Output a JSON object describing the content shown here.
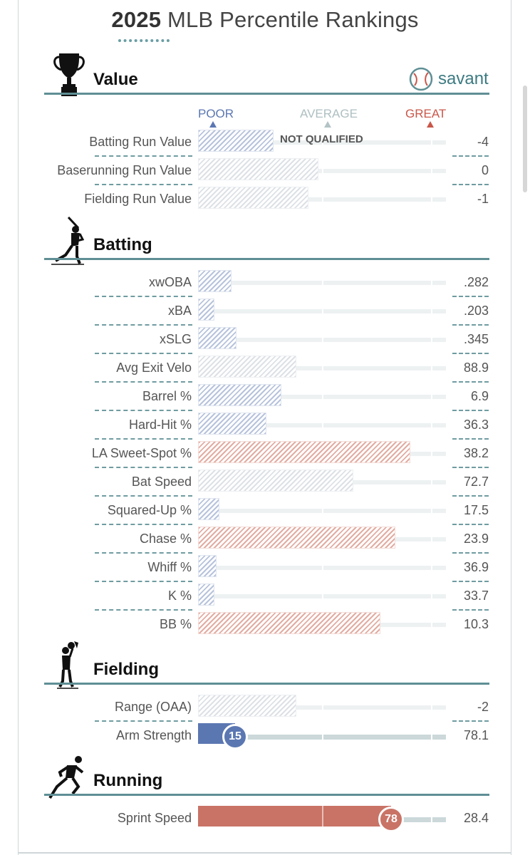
{
  "title": {
    "year": "2025",
    "rest": "MLB Percentile Rankings"
  },
  "brand": {
    "name": "savant",
    "icon": "baseball-icon"
  },
  "scale": {
    "poor": "POOR",
    "average": "AVERAGE",
    "great": "GREAT"
  },
  "colors": {
    "poor": "#5b77b2",
    "average": "#b3c3c6",
    "great": "#c9574a",
    "accent": "#5f8f95"
  },
  "sections": {
    "value": {
      "title": "Value",
      "icon": "trophy-icon"
    },
    "batting": {
      "title": "Batting",
      "icon": "batter-icon"
    },
    "fielding": {
      "title": "Fielding",
      "icon": "fielder-icon"
    },
    "running": {
      "title": "Running",
      "icon": "runner-icon"
    }
  },
  "value_metrics": [
    {
      "label": "Batting Run Value",
      "value": "-4",
      "percentile": 30,
      "tone": "blue",
      "note": "NOT QUALIFIED"
    },
    {
      "label": "Baserunning Run Value",
      "value": "0",
      "percentile": 48,
      "tone": "gray"
    },
    {
      "label": "Fielding Run Value",
      "value": "-1",
      "percentile": 44,
      "tone": "gray"
    }
  ],
  "batting_metrics": [
    {
      "label": "xwOBA",
      "value": ".282",
      "percentile": 13,
      "tone": "blue"
    },
    {
      "label": "xBA",
      "value": ".203",
      "percentile": 6,
      "tone": "blue"
    },
    {
      "label": "xSLG",
      "value": ".345",
      "percentile": 15,
      "tone": "blue"
    },
    {
      "label": "Avg Exit Velo",
      "value": "88.9",
      "percentile": 39,
      "tone": "gray"
    },
    {
      "label": "Barrel %",
      "value": "6.9",
      "percentile": 33,
      "tone": "blue"
    },
    {
      "label": "Hard-Hit %",
      "value": "36.3",
      "percentile": 27,
      "tone": "blue"
    },
    {
      "label": "LA Sweet-Spot %",
      "value": "38.2",
      "percentile": 85,
      "tone": "red"
    },
    {
      "label": "Bat Speed",
      "value": "72.7",
      "percentile": 62,
      "tone": "gray"
    },
    {
      "label": "Squared-Up %",
      "value": "17.5",
      "percentile": 8,
      "tone": "blue"
    },
    {
      "label": "Chase %",
      "value": "23.9",
      "percentile": 79,
      "tone": "red"
    },
    {
      "label": "Whiff %",
      "value": "36.9",
      "percentile": 7,
      "tone": "blue"
    },
    {
      "label": "K %",
      "value": "33.7",
      "percentile": 6,
      "tone": "blue"
    },
    {
      "label": "BB %",
      "value": "10.3",
      "percentile": 73,
      "tone": "red"
    }
  ],
  "fielding_metrics": [
    {
      "label": "Range (OAA)",
      "value": "-2",
      "percentile": 39,
      "tone": "gray"
    },
    {
      "label": "Arm Strength",
      "value": "78.1",
      "percentile": 15,
      "tone": "solid-blue",
      "rank": "15"
    }
  ],
  "running_metrics": [
    {
      "label": "Sprint Speed",
      "value": "28.4",
      "percentile": 78,
      "tone": "solid-red",
      "rank": "78"
    }
  ]
}
